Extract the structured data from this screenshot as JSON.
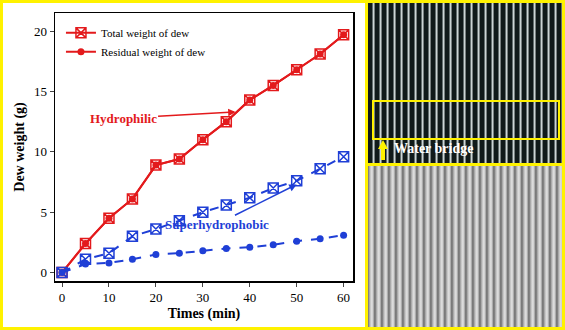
{
  "chart_data": {
    "type": "line",
    "x_label": "Times (min)",
    "y_label": "Dew weight (g)",
    "x": [
      0,
      5,
      10,
      15,
      20,
      25,
      30,
      35,
      40,
      45,
      50,
      55,
      60
    ],
    "series": [
      {
        "name": "Total weight of dew",
        "color": "#e31a1c",
        "marker": "square-x-open",
        "line_style": "solid",
        "values": [
          0,
          2.4,
          4.5,
          6.1,
          8.9,
          9.4,
          11.0,
          12.5,
          14.3,
          15.5,
          16.8,
          18.1,
          19.7
        ]
      },
      {
        "name": "Residual weight of dew",
        "color": "#e31a1c",
        "marker": "circle",
        "line_style": "solid",
        "values": [
          0,
          2.4,
          4.5,
          6.1,
          8.9,
          9.4,
          11.0,
          12.5,
          14.3,
          15.5,
          16.8,
          18.1,
          19.7
        ]
      },
      {
        "name": "Total weight of dew",
        "color": "#1f3fd6",
        "marker": "square-x-open",
        "line_style": "dash",
        "values": [
          0,
          1.1,
          1.6,
          3.0,
          3.6,
          4.3,
          5.0,
          5.6,
          6.2,
          7.0,
          7.6,
          8.6,
          9.6
        ]
      },
      {
        "name": "Residual weight of dew",
        "color": "#1f3fd6",
        "marker": "circle",
        "line_style": "dash",
        "values": [
          0,
          0.7,
          0.8,
          1.1,
          1.5,
          1.6,
          1.8,
          2.0,
          2.1,
          2.3,
          2.6,
          2.8,
          3.1
        ]
      }
    ],
    "xlim": [
      -1.5,
      62
    ],
    "xticks": [
      0,
      10,
      20,
      30,
      40,
      50,
      60
    ],
    "ylim": [
      -0.7,
      21.5
    ],
    "yticks": [
      0,
      5,
      10,
      15,
      20
    ],
    "grid": false,
    "legend": "top-left",
    "annotations": [
      {
        "text": "Hydrophilic",
        "color": "#e31a1c",
        "x": 13,
        "y": 12.8,
        "arrow_x": 37,
        "arrow_y": 13.3
      },
      {
        "text": "Superhydrophobic",
        "color": "#1f3fd6",
        "x": 33,
        "y": 4.0,
        "arrow_x": 50,
        "arrow_y": 7.3
      }
    ]
  },
  "photo": {
    "label": "Water bridge"
  }
}
